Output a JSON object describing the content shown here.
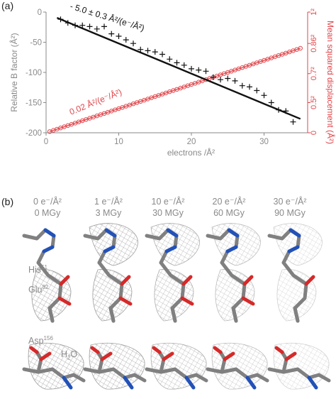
{
  "panel_a": {
    "label": "(a)",
    "chart_data": {
      "type": "scatter",
      "xlabel": "electrons /Å²",
      "ylabel_left": "Relative B factor (Å²)",
      "ylabel_right": "Mean squared displacement (Å²)",
      "xlim": [
        0,
        36
      ],
      "ylim": [
        -200,
        0
      ],
      "x_ticks": [
        0,
        10,
        20,
        30
      ],
      "y_ticks": [
        0,
        -50,
        -100,
        -150,
        -200
      ],
      "right_ticks": [
        "1²",
        "0.86²",
        "0.7²",
        "0.5²",
        "0"
      ],
      "grid": false,
      "series": [
        {
          "marker": "+",
          "color": "#111111",
          "x": [
            2,
            3,
            4,
            5,
            6,
            7,
            8,
            9,
            10,
            11,
            12,
            13,
            14,
            15,
            16,
            17,
            18,
            19,
            20,
            21,
            22,
            23,
            24,
            25,
            26,
            27,
            28,
            29,
            30,
            31,
            32,
            33,
            34
          ],
          "y": [
            -12,
            -18,
            -22,
            -22,
            -24,
            -28,
            -24,
            -36,
            -40,
            -46,
            -52,
            -62,
            -64,
            -66,
            -70,
            -78,
            -84,
            -88,
            -94,
            -96,
            -98,
            -108,
            -112,
            -110,
            -114,
            -122,
            -124,
            -130,
            -138,
            -150,
            -162,
            -164,
            -182
          ]
        },
        {
          "marker": "o",
          "color": "#e0474c",
          "x": [
            0.5,
            1,
            1.5,
            2,
            2.5,
            3,
            3.5,
            4,
            4.5,
            5,
            5.5,
            6,
            6.5,
            7,
            7.5,
            8,
            8.5,
            9,
            9.5,
            10,
            10.5,
            11,
            11.5,
            12,
            12.5,
            13,
            13.5,
            14,
            14.5,
            15,
            15.5,
            16,
            16.5,
            17,
            17.5,
            18,
            18.5,
            19,
            19.5,
            20,
            20.5,
            21,
            21.5,
            22,
            22.5,
            23,
            23.5,
            24,
            24.5,
            25,
            25.5,
            26,
            26.5,
            27,
            27.5,
            28,
            28.5,
            29,
            29.5,
            30,
            30.5,
            31,
            31.5,
            32,
            32.5,
            33,
            33.5,
            34,
            34.5,
            35
          ],
          "y_right": [
            0.01,
            0.02,
            0.03,
            0.04,
            0.05,
            0.06,
            0.07,
            0.08,
            0.09,
            0.1,
            0.11,
            0.12,
            0.13,
            0.14,
            0.15,
            0.16,
            0.17,
            0.18,
            0.19,
            0.2,
            0.21,
            0.22,
            0.23,
            0.24,
            0.25,
            0.26,
            0.27,
            0.28,
            0.29,
            0.3,
            0.31,
            0.32,
            0.33,
            0.34,
            0.35,
            0.36,
            0.37,
            0.38,
            0.39,
            0.4,
            0.41,
            0.42,
            0.43,
            0.44,
            0.45,
            0.46,
            0.47,
            0.48,
            0.49,
            0.5,
            0.51,
            0.52,
            0.53,
            0.54,
            0.55,
            0.56,
            0.57,
            0.58,
            0.59,
            0.6,
            0.61,
            0.62,
            0.63,
            0.64,
            0.65,
            0.66,
            0.67,
            0.68,
            0.69,
            0.7
          ]
        }
      ],
      "fit_lines": [
        {
          "slope": -5.0,
          "intercept": -2,
          "label": "- 5.0 ± 0.3 Å²/(e⁻/Å²)",
          "color": "#111111"
        },
        {
          "slope_right": 0.02,
          "label": "0.02 Å²/(e⁻/Å²)",
          "color": "#e0474c"
        }
      ]
    }
  },
  "panel_b": {
    "label": "(b)",
    "columns": [
      {
        "dose": "0 e⁻/Å²",
        "mgy": "0 MGy"
      },
      {
        "dose": "1 e⁻/Å²",
        "mgy": "3 MGy"
      },
      {
        "dose": "10 e⁻/Å²",
        "mgy": "30 MGy"
      },
      {
        "dose": "20 e⁻/Å²",
        "mgy": "60 MGy"
      },
      {
        "dose": "30 e⁻/Å²",
        "mgy": "90 MGy"
      }
    ],
    "labels": {
      "his": "His",
      "his_sup": "51",
      "glu": "Glu",
      "glu_sup": "82",
      "asp": "Asp",
      "asp_sup": "156",
      "water": "H",
      "water_sub": "2",
      "water_end": "O"
    },
    "colors": {
      "carbon": "#808080",
      "oxygen": "#d42a2a",
      "nitrogen": "#2251b8",
      "mesh": "#9a9a9a"
    }
  }
}
